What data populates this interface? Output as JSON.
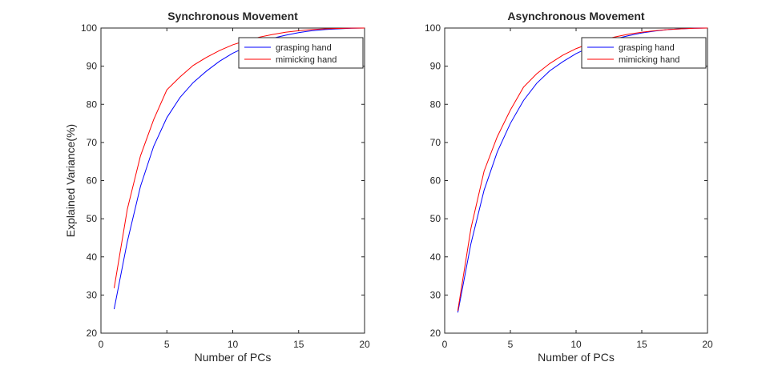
{
  "chart_data": [
    {
      "type": "line",
      "title": "Synchronous Movement",
      "xlabel": "Number of PCs",
      "ylabel": "Explained Variance(%)",
      "xlim": [
        0,
        20
      ],
      "ylim": [
        20,
        100
      ],
      "xticks": [
        0,
        5,
        10,
        15,
        20
      ],
      "yticks": [
        20,
        30,
        40,
        50,
        60,
        70,
        80,
        90,
        100
      ],
      "grid": false,
      "legend_position": "top-right",
      "x": [
        1,
        2,
        3,
        4,
        5,
        6,
        7,
        8,
        9,
        10,
        11,
        12,
        13,
        14,
        15,
        16,
        17,
        18,
        19,
        20
      ],
      "series": [
        {
          "name": "grasping hand",
          "color": "#0000ff",
          "values": [
            26.3,
            44.0,
            58.5,
            69.0,
            76.5,
            81.8,
            85.7,
            88.7,
            91.3,
            93.4,
            95.0,
            96.3,
            97.3,
            98.1,
            98.8,
            99.3,
            99.6,
            99.8,
            99.95,
            100
          ]
        },
        {
          "name": "mimicking hand",
          "color": "#ff0000",
          "values": [
            31.8,
            52.5,
            66.5,
            76.0,
            83.8,
            87.2,
            90.2,
            92.3,
            94.1,
            95.6,
            96.7,
            97.6,
            98.3,
            98.9,
            99.3,
            99.6,
            99.8,
            99.9,
            99.97,
            100
          ]
        }
      ]
    },
    {
      "type": "line",
      "title": "Asynchronous Movement",
      "xlabel": "Number of PCs",
      "ylabel": "",
      "xlim": [
        0,
        20
      ],
      "ylim": [
        20,
        100
      ],
      "xticks": [
        0,
        5,
        10,
        15,
        20
      ],
      "yticks": [
        20,
        30,
        40,
        50,
        60,
        70,
        80,
        90,
        100
      ],
      "grid": false,
      "legend_position": "top-right",
      "x": [
        1,
        2,
        3,
        4,
        5,
        6,
        7,
        8,
        9,
        10,
        11,
        12,
        13,
        14,
        15,
        16,
        17,
        18,
        19,
        20
      ],
      "series": [
        {
          "name": "grasping hand",
          "color": "#0000ff",
          "values": [
            25.4,
            43.5,
            57.5,
            67.5,
            75.0,
            81.0,
            85.5,
            88.8,
            91.2,
            93.3,
            94.9,
            96.2,
            97.2,
            98.0,
            98.7,
            99.2,
            99.6,
            99.8,
            99.95,
            100
          ]
        },
        {
          "name": "mimicking hand",
          "color": "#ff0000",
          "values": [
            25.9,
            47.5,
            62.5,
            71.5,
            78.5,
            84.5,
            88.0,
            90.7,
            92.9,
            94.6,
            95.9,
            96.9,
            97.7,
            98.4,
            98.9,
            99.3,
            99.6,
            99.8,
            99.95,
            100
          ]
        }
      ]
    }
  ]
}
